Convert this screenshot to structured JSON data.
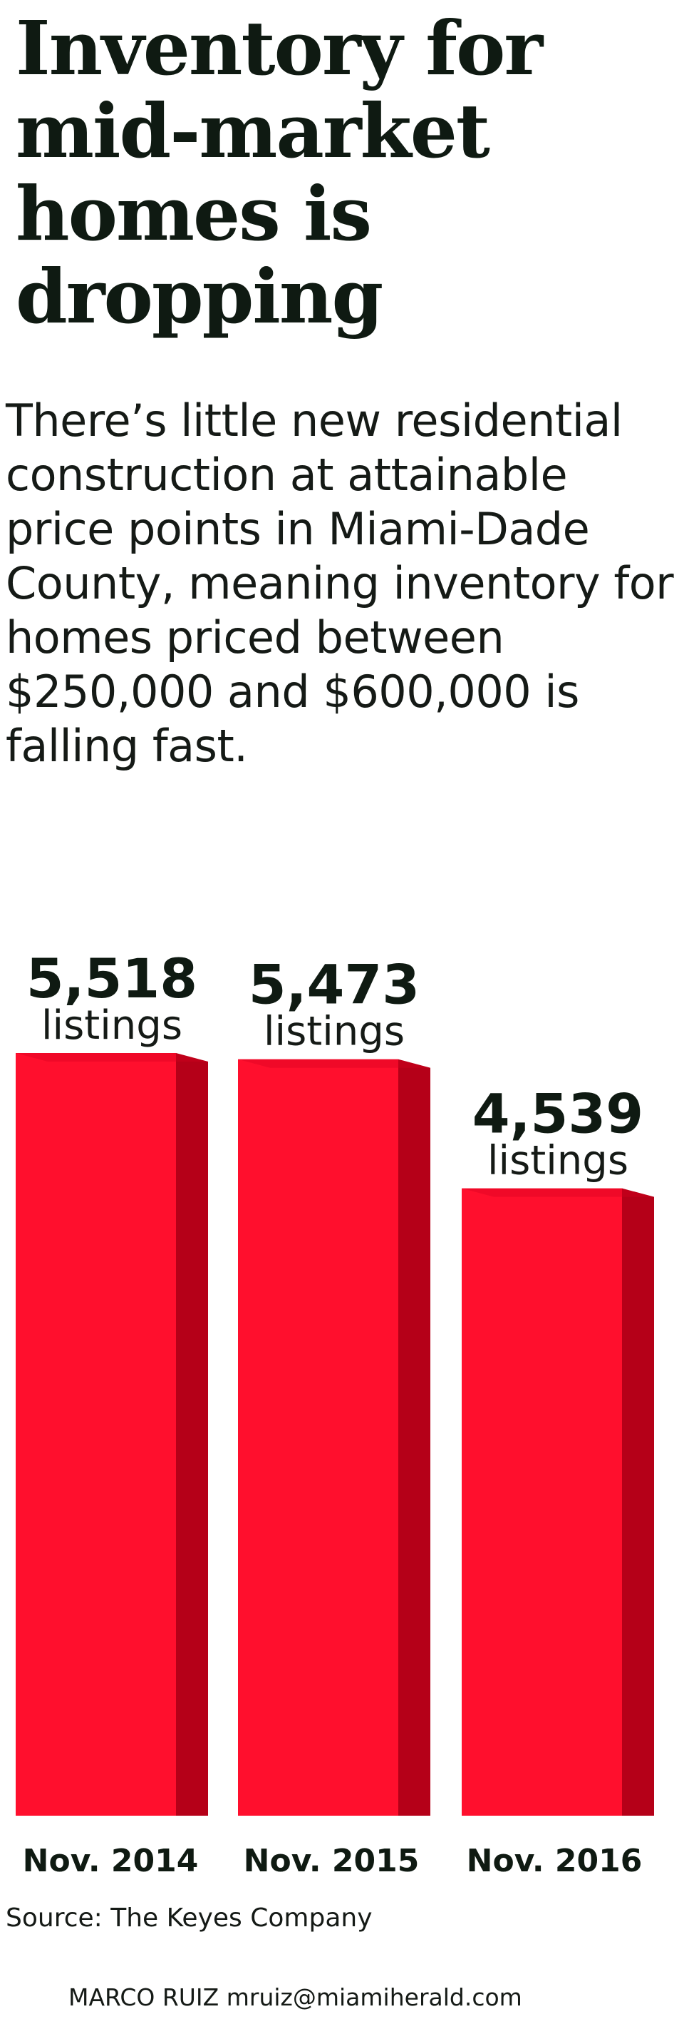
{
  "headline": "Inventory for mid-market homes is dropping",
  "subhead": "There’s little new residential construction at attainable price points in Miami-Dade County, meaning inventory for homes priced between $250,000 and $600,000 is falling fast.",
  "chart_data": {
    "type": "bar",
    "categories": [
      "Nov. 2014",
      "Nov. 2015",
      "Nov. 2016"
    ],
    "values": [
      5518,
      5473,
      4539
    ],
    "value_labels": [
      "5,518",
      "5,473",
      "4,539"
    ],
    "unit_label": "listings",
    "title": "",
    "xlabel": "",
    "ylabel": "",
    "ylim": [
      0,
      5600
    ],
    "grid": false,
    "legend": "none",
    "colors": {
      "bar_front": "#ff0f2d",
      "bar_side": "#b50018",
      "bar_top": "#d4001f"
    }
  },
  "source": "Source: The Keyes Company",
  "credit": "MARCO RUIZ mruiz@miamiherald.com"
}
